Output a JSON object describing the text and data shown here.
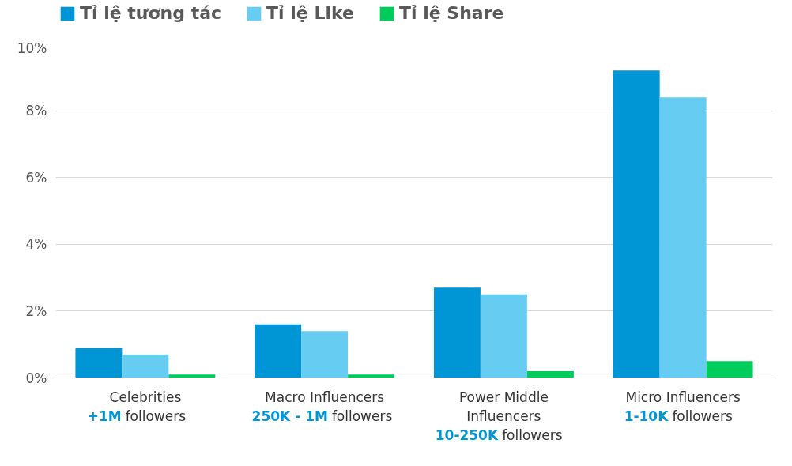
{
  "chart_data": {
    "type": "bar",
    "categories": [
      "Celebrities\n+1M followers",
      "Macro Influencers\n250K - 1M followers",
      "Power Middle\nInfluencers\n10-250K followers",
      "Micro Influencers\n1-10K followers"
    ],
    "series": [
      {
        "name": "Tỉ lệ tương tác",
        "color": "#0096d6",
        "values": [
          0.9,
          1.6,
          2.7,
          9.2
        ]
      },
      {
        "name": "Tỉ lệ Like",
        "color": "#66ccf2",
        "values": [
          0.7,
          1.4,
          2.5,
          8.4
        ]
      },
      {
        "name": "Tỉ lệ Share",
        "color": "#00cc5c",
        "values": [
          0.1,
          0.1,
          0.2,
          0.5
        ]
      }
    ],
    "ylim": [
      0,
      10
    ],
    "yticks": [
      {
        "value": 0,
        "label": "0%"
      },
      {
        "value": 2,
        "label": "2%"
      },
      {
        "value": 4,
        "label": "4%"
      },
      {
        "value": 6,
        "label": "6%"
      },
      {
        "value": 8,
        "label": "8%"
      },
      {
        "value": 10,
        "label": "10%"
      }
    ],
    "grid": "y",
    "legend": "top"
  }
}
